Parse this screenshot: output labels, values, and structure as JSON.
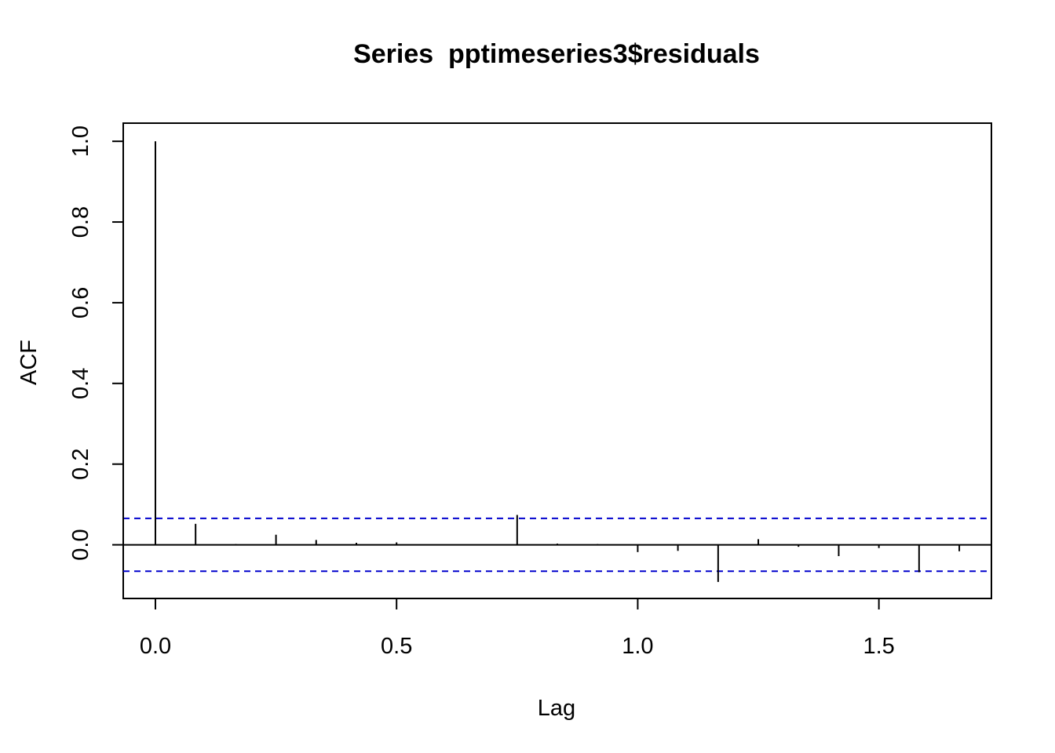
{
  "chart_data": {
    "type": "bar",
    "subtype": "acf-stem",
    "title": "Series  pptimeseries3$residuals",
    "xlabel": "Lag",
    "ylabel": "ACF",
    "xlim": [
      -0.0667,
      1.7333
    ],
    "ylim": [
      -0.133,
      1.045
    ],
    "xticks": [
      0.0,
      0.5,
      1.0,
      1.5
    ],
    "xtick_labels": [
      "0.0",
      "0.5",
      "1.0",
      "1.5"
    ],
    "yticks": [
      0.0,
      0.2,
      0.4,
      0.6,
      0.8,
      1.0
    ],
    "ytick_labels": [
      "0.0",
      "0.2",
      "0.4",
      "0.6",
      "0.8",
      "1.0"
    ],
    "grid": false,
    "confidence_band": [
      -0.0655,
      0.0655
    ],
    "colors": {
      "stems": "#000000",
      "zero_line": "#000000",
      "confidence": "#0000cd"
    },
    "series": [
      {
        "lags": [
          0.0,
          0.0833,
          0.1667,
          0.25,
          0.3333,
          0.4167,
          0.5,
          0.5833,
          0.6667,
          0.75,
          0.8333,
          0.9167,
          1.0,
          1.0833,
          1.1667,
          1.25,
          1.3333,
          1.4167,
          1.5,
          1.5833,
          1.6667
        ],
        "values": [
          1.0,
          0.052,
          0.002,
          0.025,
          0.012,
          0.005,
          0.006,
          0.001,
          0.001,
          0.074,
          0.003,
          0.002,
          -0.018,
          -0.015,
          -0.092,
          0.014,
          -0.005,
          -0.028,
          -0.008,
          -0.068,
          -0.016
        ]
      }
    ]
  }
}
